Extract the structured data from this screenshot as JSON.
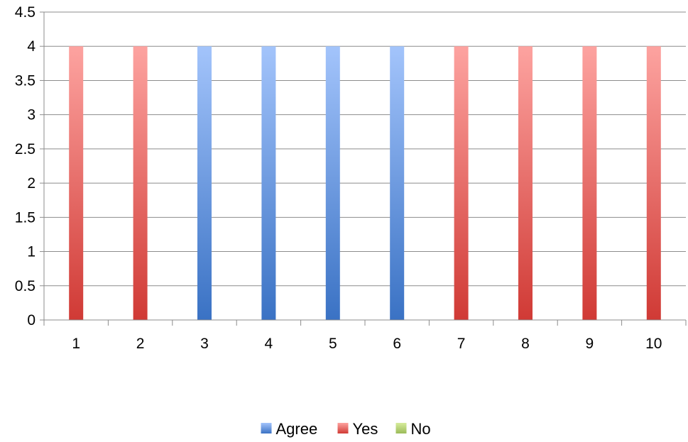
{
  "chart_data": {
    "type": "bar",
    "categories": [
      "1",
      "2",
      "3",
      "4",
      "5",
      "6",
      "7",
      "8",
      "9",
      "10"
    ],
    "series": [
      {
        "name": "Agree",
        "color": "#3a72c4",
        "values": [
          null,
          null,
          4,
          4,
          4,
          4,
          null,
          null,
          null,
          null
        ]
      },
      {
        "name": "Yes",
        "color": "#d03a35",
        "values": [
          4,
          4,
          null,
          null,
          null,
          null,
          4,
          4,
          4,
          4
        ]
      },
      {
        "name": "No",
        "color": "#9bbb59",
        "values": [
          null,
          null,
          null,
          null,
          null,
          null,
          null,
          null,
          null,
          null
        ]
      }
    ],
    "yticks": [
      "0",
      "0.5",
      "1",
      "1.5",
      "2",
      "2.5",
      "3",
      "3.5",
      "4",
      "4.5"
    ],
    "ylim": [
      0,
      4.5
    ],
    "grid": true,
    "legend_position": "bottom",
    "title": "",
    "xlabel": "",
    "ylabel": ""
  }
}
